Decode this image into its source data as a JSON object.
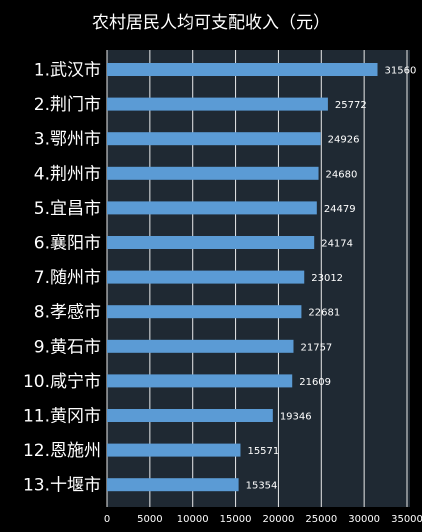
{
  "chart_data": {
    "type": "bar",
    "orientation": "horizontal",
    "title": "农村居民人均可支配收入（元）",
    "categories": [
      "1.武汉市",
      "2.荆门市",
      "3.鄂州市",
      "4.荆州市",
      "5.宜昌市",
      "6.襄阳市",
      "7.随州市",
      "8.孝感市",
      "9.黄石市",
      "10.咸宁市",
      "11.黄冈市",
      "12.恩施州",
      "13.十堰市"
    ],
    "values": [
      31560,
      25772,
      24926,
      24680,
      24479,
      24174,
      23012,
      22681,
      21757,
      21609,
      19346,
      15571,
      15354
    ],
    "value_labels": [
      "31560",
      "25772",
      "24926",
      "24680",
      "24479",
      "24174",
      "23012",
      "22681",
      "21757",
      "21609",
      "19346",
      "15571",
      "15354"
    ],
    "xlim": [
      0,
      35000
    ],
    "x_ticks": [
      "0",
      "5000",
      "10000",
      "15000",
      "20000",
      "25000",
      "30000",
      "35000"
    ],
    "x_tick_values": [
      0,
      5000,
      10000,
      15000,
      20000,
      25000,
      30000,
      35000
    ],
    "grid": "vertical",
    "xlabel": "",
    "ylabel": "",
    "colors": {
      "background": "#000000",
      "plot_background": "#1f2933",
      "bar": "#5b9bd5",
      "text": "#ffffff",
      "grid": "#ffffff"
    }
  }
}
